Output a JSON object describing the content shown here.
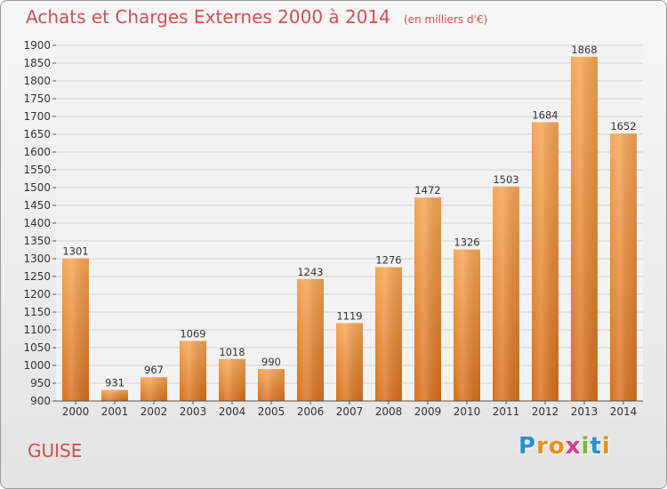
{
  "title": {
    "main": "Achats et Charges Externes 2000 à 2014",
    "unit": "(en milliers d'€)"
  },
  "footer": {
    "city": "GUISE",
    "logo_letters": [
      "P",
      "r",
      "o",
      "x",
      "i",
      "t",
      "i"
    ],
    "logo_colors": [
      "#2a8fd4",
      "#e8901a",
      "#e8901a",
      "#d83a8a",
      "#7ab83a",
      "#2a8fd4",
      "#e8901a"
    ]
  },
  "chart_data": {
    "type": "bar",
    "categories": [
      "2000",
      "2001",
      "2002",
      "2003",
      "2004",
      "2005",
      "2006",
      "2007",
      "2008",
      "2009",
      "2010",
      "2011",
      "2012",
      "2013",
      "2014"
    ],
    "values": [
      1301,
      931,
      967,
      1069,
      1018,
      990,
      1243,
      1119,
      1276,
      1472,
      1326,
      1503,
      1684,
      1868,
      1652
    ],
    "ylim": [
      900,
      1900
    ],
    "ytick_step": 50,
    "bar_color": "#ee8a32",
    "grid": true
  }
}
